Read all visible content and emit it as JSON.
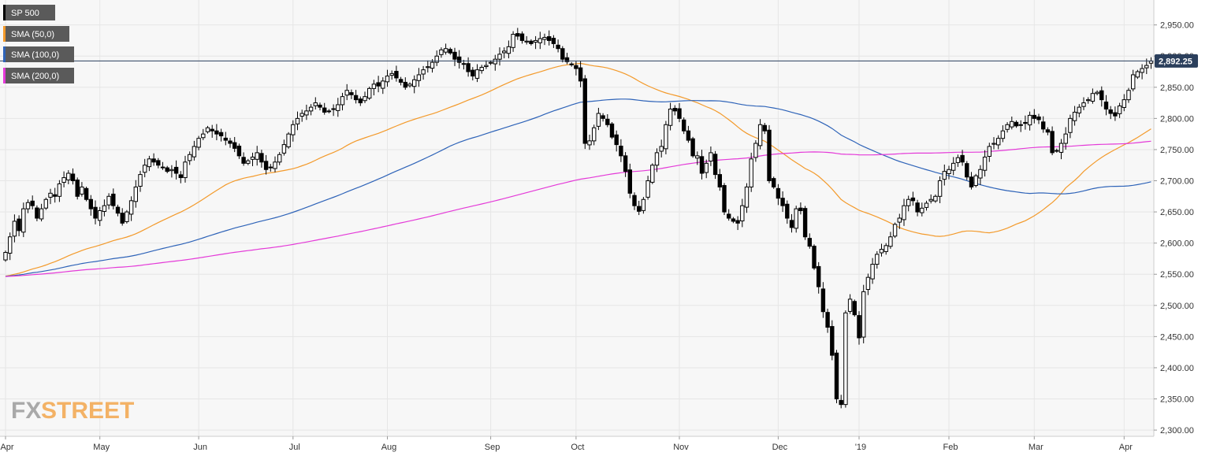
{
  "legend": [
    {
      "label": "SP 500",
      "color": "#000000"
    },
    {
      "label": "SMA (50,0)",
      "color": "#f39a2b"
    },
    {
      "label": "SMA (100,0)",
      "color": "#2e63b8"
    },
    {
      "label": "SMA (200,0)",
      "color": "#e43ad8"
    }
  ],
  "last_price": {
    "label": "2,892.25",
    "value": 2892.25
  },
  "watermark": {
    "part1": "FX",
    "part2": "STREET",
    "color1": "#a9a9a9",
    "color2": "#f3b266"
  },
  "colors": {
    "up": "#ffffff",
    "down": "#000000",
    "wick": "#000000",
    "grid": "#e6e6e6",
    "plot_bg": "#f7f7f7"
  },
  "chart_data": {
    "type": "candlestick",
    "title": "",
    "xlabel": "",
    "ylabel": "",
    "ylim": [
      2290,
      2990
    ],
    "grid": true,
    "legend_position": "top-left",
    "y_ticks": [
      "2,950.00",
      "2,900.00",
      "2,850.00",
      "2,800.00",
      "2,750.00",
      "2,700.00",
      "2,650.00",
      "2,600.00",
      "2,550.00",
      "2,500.00",
      "2,450.00",
      "2,400.00",
      "2,350.00",
      "2,300.00"
    ],
    "y_tick_values": [
      2950,
      2900,
      2850,
      2800,
      2750,
      2700,
      2650,
      2600,
      2550,
      2500,
      2450,
      2400,
      2350,
      2300
    ],
    "x_ticks": [
      {
        "label": "Apr",
        "index": 0
      },
      {
        "label": "May",
        "index": 21
      },
      {
        "label": "Jun",
        "index": 43
      },
      {
        "label": "Jul",
        "index": 64
      },
      {
        "label": "Aug",
        "index": 85
      },
      {
        "label": "Sep",
        "index": 108
      },
      {
        "label": "Oct",
        "index": 127
      },
      {
        "label": "Nov",
        "index": 150
      },
      {
        "label": "Dec",
        "index": 172
      },
      {
        "label": "'19",
        "index": 190
      },
      {
        "label": "Feb",
        "index": 210
      },
      {
        "label": "Mar",
        "index": 229
      },
      {
        "label": "Apr",
        "index": 249
      }
    ],
    "close": [
      2585,
      2610,
      2635,
      2620,
      2655,
      2665,
      2660,
      2640,
      2655,
      2670,
      2680,
      2675,
      2695,
      2705,
      2712,
      2700,
      2675,
      2690,
      2670,
      2655,
      2640,
      2652,
      2660,
      2675,
      2660,
      2648,
      2632,
      2650,
      2668,
      2690,
      2710,
      2725,
      2735,
      2730,
      2725,
      2722,
      2715,
      2718,
      2712,
      2705,
      2730,
      2742,
      2755,
      2768,
      2775,
      2785,
      2780,
      2775,
      2772,
      2765,
      2760,
      2752,
      2740,
      2728,
      2732,
      2738,
      2745,
      2730,
      2718,
      2722,
      2730,
      2742,
      2758,
      2775,
      2790,
      2800,
      2808,
      2812,
      2818,
      2825,
      2818,
      2810,
      2812,
      2815,
      2822,
      2835,
      2845,
      2838,
      2830,
      2825,
      2835,
      2848,
      2855,
      2852,
      2860,
      2868,
      2872,
      2865,
      2858,
      2850,
      2855,
      2862,
      2870,
      2878,
      2883,
      2890,
      2900,
      2910,
      2912,
      2905,
      2895,
      2890,
      2888,
      2875,
      2868,
      2878,
      2882,
      2885,
      2890,
      2895,
      2903,
      2908,
      2915,
      2935,
      2932,
      2925,
      2924,
      2920,
      2925,
      2928,
      2930,
      2925,
      2920,
      2912,
      2895,
      2891,
      2886,
      2880,
      2860,
      2760,
      2764,
      2785,
      2808,
      2800,
      2790,
      2770,
      2758,
      2740,
      2715,
      2680,
      2660,
      2651,
      2670,
      2700,
      2725,
      2745,
      2755,
      2790,
      2815,
      2812,
      2800,
      2780,
      2765,
      2740,
      2740,
      2712,
      2728,
      2745,
      2710,
      2690,
      2650,
      2640,
      2635,
      2632,
      2660,
      2690,
      2735,
      2760,
      2790,
      2780,
      2700,
      2690,
      2672,
      2660,
      2640,
      2625,
      2655,
      2652,
      2610,
      2595,
      2560,
      2530,
      2490,
      2465,
      2420,
      2350,
      2341,
      2488,
      2510,
      2485,
      2448,
      2522,
      2545,
      2566,
      2582,
      2590,
      2596,
      2610,
      2630,
      2640,
      2660,
      2670,
      2668,
      2650,
      2656,
      2664,
      2670,
      2675,
      2700,
      2715,
      2718,
      2728,
      2737,
      2730,
      2706,
      2690,
      2708,
      2718,
      2738,
      2755,
      2760,
      2768,
      2780,
      2790,
      2795,
      2788,
      2790,
      2792,
      2805,
      2800,
      2798,
      2783,
      2778,
      2745,
      2748,
      2760,
      2775,
      2800,
      2810,
      2818,
      2825,
      2830,
      2840,
      2842,
      2830,
      2815,
      2808,
      2804,
      2820,
      2830,
      2845,
      2870,
      2875,
      2880,
      2885,
      2892
    ]
  }
}
